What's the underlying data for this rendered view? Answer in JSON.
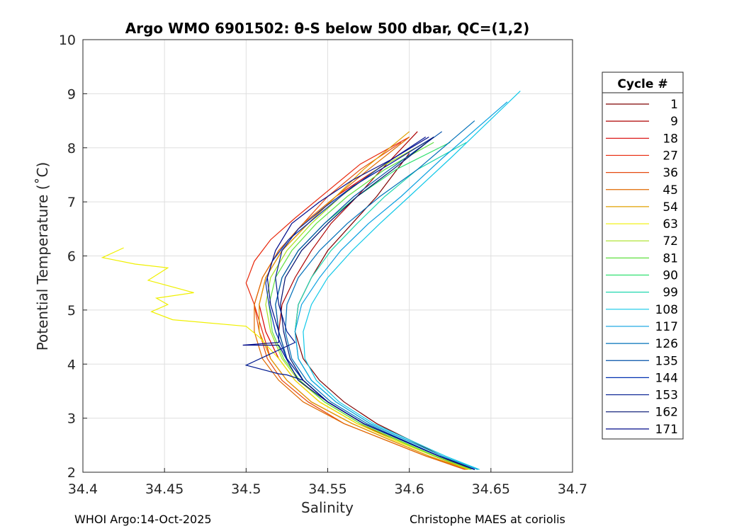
{
  "chart_data": {
    "type": "line",
    "title": "Argo WMO 6901502: θ-S below 500 dbar,  QC=(1,2)",
    "xlabel": "Salinity",
    "ylabel": "Potential Temperature (˚C)",
    "xlim": [
      34.4,
      34.7
    ],
    "ylim": [
      2,
      10
    ],
    "xticks": [
      34.4,
      34.45,
      34.5,
      34.55,
      34.6,
      34.65,
      34.7
    ],
    "xtick_labels": [
      "34.4",
      "34.45",
      "34.5",
      "34.55",
      "34.6",
      "34.65",
      "34.7"
    ],
    "yticks": [
      2,
      3,
      4,
      5,
      6,
      7,
      8,
      9,
      10
    ],
    "ytick_labels": [
      "2",
      "3",
      "4",
      "5",
      "6",
      "7",
      "8",
      "9",
      "10"
    ],
    "grid": true,
    "legend": {
      "title": "Cycle #",
      "position": "right",
      "entries": [
        "1",
        "9",
        "18",
        "27",
        "36",
        "45",
        "54",
        "63",
        "72",
        "81",
        "90",
        "99",
        "108",
        "117",
        "126",
        "135",
        "144",
        "153",
        "162",
        "171"
      ],
      "colors": [
        "#7f0000",
        "#ad0000",
        "#d80000",
        "#e8260a",
        "#e54a10",
        "#e06a00",
        "#e0a000",
        "#f0f000",
        "#a8e020",
        "#60e040",
        "#30e070",
        "#20d8b0",
        "#10c8e8",
        "#0aa0e0",
        "#0070b8",
        "#0050a8",
        "#0030b0",
        "#001a90",
        "#001070",
        "#000a8a"
      ]
    },
    "series": [
      {
        "name": "1",
        "salinity": [
          34.64,
          34.62,
          34.6,
          34.58,
          34.56,
          34.545,
          34.535,
          34.53,
          34.532,
          34.54,
          34.55,
          34.565,
          34.58,
          34.6
        ],
        "theta": [
          2.05,
          2.3,
          2.6,
          2.9,
          3.3,
          3.7,
          4.1,
          4.6,
          5.1,
          5.6,
          6.1,
          6.6,
          7.1,
          7.9
        ]
      },
      {
        "name": "9",
        "salinity": [
          34.638,
          34.618,
          34.595,
          34.572,
          34.55,
          34.535,
          34.525,
          34.52,
          34.522,
          34.53,
          34.54,
          34.552,
          34.568,
          34.58,
          34.605
        ],
        "theta": [
          2.05,
          2.3,
          2.6,
          2.9,
          3.3,
          3.7,
          4.1,
          4.6,
          5.1,
          5.6,
          6.1,
          6.6,
          7.1,
          7.5,
          8.3
        ]
      },
      {
        "name": "18",
        "salinity": [
          34.636,
          34.615,
          34.592,
          34.568,
          34.545,
          34.53,
          34.52,
          34.512,
          34.508,
          34.512,
          34.522,
          34.538,
          34.555,
          34.575,
          34.61
        ],
        "theta": [
          2.05,
          2.3,
          2.6,
          2.9,
          3.3,
          3.7,
          4.1,
          4.6,
          5.1,
          5.6,
          6.1,
          6.6,
          7.1,
          7.5,
          8.2
        ]
      },
      {
        "name": "27",
        "salinity": [
          34.635,
          34.612,
          34.588,
          34.565,
          34.54,
          34.525,
          34.515,
          34.51,
          34.505,
          34.5,
          34.505,
          34.515,
          34.53,
          34.55,
          34.57,
          34.6
        ],
        "theta": [
          2.05,
          2.3,
          2.6,
          2.9,
          3.3,
          3.7,
          4.1,
          4.6,
          5.1,
          5.5,
          5.9,
          6.3,
          6.7,
          7.2,
          7.7,
          8.2
        ]
      },
      {
        "name": "36",
        "salinity": [
          34.634,
          34.61,
          34.585,
          34.56,
          34.538,
          34.522,
          34.513,
          34.508,
          34.505,
          34.51,
          34.52,
          34.535,
          34.55,
          34.57,
          34.595
        ],
        "theta": [
          2.05,
          2.3,
          2.6,
          2.9,
          3.3,
          3.7,
          4.1,
          4.6,
          5.1,
          5.6,
          6.1,
          6.6,
          7.1,
          7.6,
          8.1
        ]
      },
      {
        "name": "45",
        "salinity": [
          34.635,
          34.61,
          34.585,
          34.56,
          34.535,
          34.52,
          34.51,
          34.505,
          34.505,
          34.51,
          34.52,
          34.535,
          34.555,
          34.575,
          34.6
        ],
        "theta": [
          2.05,
          2.3,
          2.6,
          2.9,
          3.3,
          3.7,
          4.1,
          4.6,
          5.1,
          5.6,
          6.1,
          6.6,
          7.1,
          7.6,
          8.2
        ]
      },
      {
        "name": "54",
        "salinity": [
          34.636,
          34.612,
          34.588,
          34.565,
          34.54,
          34.525,
          34.515,
          34.508,
          34.508,
          34.512,
          34.522,
          34.538,
          34.555,
          34.572,
          34.6
        ],
        "theta": [
          2.05,
          2.3,
          2.6,
          2.9,
          3.3,
          3.7,
          4.1,
          4.6,
          5.1,
          5.6,
          6.1,
          6.6,
          7.1,
          7.6,
          8.3
        ]
      },
      {
        "name": "63",
        "salinity": [
          34.637,
          34.615,
          34.59,
          34.568,
          34.545,
          34.53,
          34.52,
          34.508,
          34.5,
          34.455,
          34.442,
          34.452,
          34.445,
          34.468,
          34.44,
          34.452,
          34.432,
          34.412,
          34.425
        ],
        "theta": [
          2.05,
          2.3,
          2.6,
          2.9,
          3.3,
          3.7,
          4.1,
          4.5,
          4.7,
          4.82,
          4.97,
          5.1,
          5.22,
          5.32,
          5.55,
          5.78,
          5.85,
          5.97,
          6.15
        ]
      },
      {
        "name": "72",
        "salinity": [
          34.638,
          34.615,
          34.592,
          34.57,
          34.548,
          34.532,
          34.522,
          34.515,
          34.512,
          34.515,
          34.525,
          34.54,
          34.558,
          34.58,
          34.61
        ],
        "theta": [
          2.05,
          2.3,
          2.6,
          2.9,
          3.3,
          3.7,
          4.1,
          4.6,
          5.1,
          5.6,
          6.1,
          6.6,
          7.1,
          7.6,
          8.1
        ]
      },
      {
        "name": "81",
        "salinity": [
          34.638,
          34.616,
          34.593,
          34.57,
          34.548,
          34.533,
          34.523,
          34.516,
          34.514,
          34.518,
          34.528,
          34.543,
          34.562,
          34.585,
          34.615
        ],
        "theta": [
          2.05,
          2.3,
          2.6,
          2.9,
          3.3,
          3.7,
          4.1,
          4.6,
          5.1,
          5.6,
          6.1,
          6.6,
          7.1,
          7.6,
          8.1
        ]
      },
      {
        "name": "90",
        "salinity": [
          34.64,
          34.618,
          34.595,
          34.572,
          34.55,
          34.535,
          34.525,
          34.52,
          34.518,
          34.522,
          34.532,
          34.548,
          34.568,
          34.592,
          34.625
        ],
        "theta": [
          2.05,
          2.3,
          2.6,
          2.9,
          3.3,
          3.7,
          4.1,
          4.6,
          5.1,
          5.6,
          6.1,
          6.6,
          7.1,
          7.6,
          8.1
        ]
      },
      {
        "name": "99",
        "salinity": [
          34.642,
          34.62,
          34.598,
          34.576,
          34.555,
          34.54,
          34.532,
          34.53,
          34.532,
          34.54,
          34.552,
          34.568,
          34.585,
          34.605,
          34.635
        ],
        "theta": [
          2.05,
          2.3,
          2.6,
          2.9,
          3.3,
          3.7,
          4.1,
          4.6,
          5.1,
          5.6,
          6.1,
          6.6,
          7.1,
          7.6,
          8.1
        ]
      },
      {
        "name": "108",
        "salinity": [
          34.643,
          34.622,
          34.6,
          34.578,
          34.557,
          34.543,
          34.536,
          34.535,
          34.54,
          34.55,
          34.565,
          34.582,
          34.6,
          34.625,
          34.668
        ],
        "theta": [
          2.05,
          2.3,
          2.6,
          2.9,
          3.3,
          3.7,
          4.1,
          4.6,
          5.1,
          5.6,
          6.1,
          6.6,
          7.1,
          7.8,
          9.05
        ]
      },
      {
        "name": "117",
        "salinity": [
          34.642,
          34.62,
          34.598,
          34.576,
          34.555,
          34.54,
          34.532,
          34.53,
          34.534,
          34.545,
          34.558,
          34.575,
          34.595,
          34.62,
          34.66
        ],
        "theta": [
          2.05,
          2.3,
          2.6,
          2.9,
          3.3,
          3.7,
          4.1,
          4.6,
          5.1,
          5.6,
          6.1,
          6.6,
          7.1,
          7.8,
          8.85
        ]
      },
      {
        "name": "126",
        "salinity": [
          34.64,
          34.618,
          34.596,
          34.574,
          34.552,
          34.537,
          34.528,
          34.524,
          34.525,
          34.532,
          34.545,
          34.562,
          34.582,
          34.605,
          34.64
        ],
        "theta": [
          2.05,
          2.3,
          2.6,
          2.9,
          3.3,
          3.7,
          4.1,
          4.6,
          5.1,
          5.6,
          6.1,
          6.6,
          7.1,
          7.6,
          8.5
        ]
      },
      {
        "name": "135",
        "salinity": [
          34.64,
          34.618,
          34.595,
          34.572,
          34.55,
          34.535,
          34.525,
          34.52,
          34.518,
          34.522,
          34.532,
          34.548,
          34.566,
          34.588,
          34.62
        ],
        "theta": [
          2.05,
          2.3,
          2.6,
          2.9,
          3.3,
          3.7,
          4.1,
          4.6,
          5.1,
          5.6,
          6.1,
          6.6,
          7.1,
          7.6,
          8.3
        ]
      },
      {
        "name": "144",
        "salinity": [
          34.64,
          34.618,
          34.595,
          34.572,
          34.55,
          34.535,
          34.525,
          34.518,
          34.514,
          34.512,
          34.516,
          34.526,
          34.542,
          34.562,
          34.585,
          34.61
        ],
        "theta": [
          2.05,
          2.3,
          2.6,
          2.9,
          3.3,
          3.7,
          4.1,
          4.6,
          5.1,
          5.5,
          5.9,
          6.3,
          6.7,
          7.2,
          7.7,
          8.2
        ]
      },
      {
        "name": "153",
        "salinity": [
          34.64,
          34.618,
          34.595,
          34.572,
          34.55,
          34.535,
          34.525,
          34.52,
          34.5,
          34.53,
          34.525,
          34.52,
          34.518,
          34.522,
          34.532,
          34.548,
          34.566,
          34.588,
          34.615
        ],
        "theta": [
          2.05,
          2.3,
          2.6,
          2.9,
          3.3,
          3.7,
          3.8,
          3.82,
          3.98,
          4.4,
          4.6,
          5.1,
          5.6,
          6.1,
          6.5,
          6.9,
          7.3,
          7.7,
          8.2
        ]
      },
      {
        "name": "162",
        "salinity": [
          34.64,
          34.618,
          34.595,
          34.572,
          34.55,
          34.535,
          34.527,
          34.523,
          34.521,
          34.524,
          34.534,
          34.55,
          34.568,
          34.59,
          34.615
        ],
        "theta": [
          2.05,
          2.3,
          2.6,
          2.9,
          3.3,
          3.7,
          4.1,
          4.6,
          5.1,
          5.6,
          6.1,
          6.6,
          7.1,
          7.6,
          8.2
        ]
      },
      {
        "name": "171",
        "salinity": [
          34.64,
          34.618,
          34.595,
          34.572,
          34.55,
          34.532,
          34.52,
          34.498,
          34.52,
          34.52,
          34.515,
          34.513,
          34.518,
          34.528,
          34.545,
          34.565,
          34.59,
          34.612
        ],
        "theta": [
          2.05,
          2.3,
          2.6,
          2.9,
          3.3,
          3.7,
          4.35,
          4.35,
          4.4,
          4.6,
          5.1,
          5.6,
          6.1,
          6.6,
          7.0,
          7.4,
          7.8,
          8.2
        ]
      }
    ]
  },
  "footer": {
    "left": "WHOI Argo:14-Oct-2025",
    "right": "Christophe MAES at coriolis"
  }
}
